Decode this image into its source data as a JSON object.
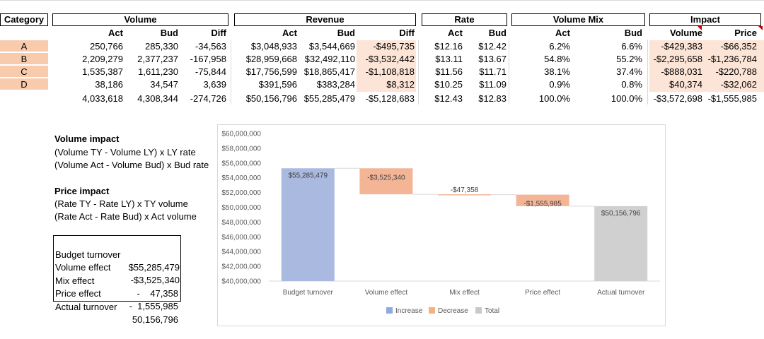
{
  "table": {
    "category_header": "Category",
    "groups": {
      "volume": "Volume",
      "revenue": "Revenue",
      "rate": "Rate",
      "volume_mix": "Volume Mix",
      "impact": "Impact"
    },
    "subheaders": {
      "volume": [
        "Act",
        "Bud",
        "Diff"
      ],
      "revenue": [
        "Act",
        "Bud",
        "Diff"
      ],
      "rate": [
        "Act",
        "Bud"
      ],
      "volume_mix": [
        "Act",
        "Bud"
      ],
      "impact": [
        "Volume",
        "Price"
      ]
    },
    "rows": [
      {
        "category": "A",
        "vol_act": "250,766",
        "vol_bud": "285,330",
        "vol_diff": "-34,563",
        "rev_act": "$3,048,933",
        "rev_bud": "$3,544,669",
        "rev_diff": "-$495,735",
        "rate_act": "$12.16",
        "rate_bud": "$12.42",
        "mix_act": "6.2%",
        "mix_bud": "6.6%",
        "imp_volume": "-$429,383",
        "imp_price": "-$66,352"
      },
      {
        "category": "B",
        "vol_act": "2,209,279",
        "vol_bud": "2,377,237",
        "vol_diff": "-167,958",
        "rev_act": "$28,959,668",
        "rev_bud": "$32,492,110",
        "rev_diff": "-$3,532,442",
        "rate_act": "$13.11",
        "rate_bud": "$13.67",
        "mix_act": "54.8%",
        "mix_bud": "55.2%",
        "imp_volume": "-$2,295,658",
        "imp_price": "-$1,236,784"
      },
      {
        "category": "C",
        "vol_act": "1,535,387",
        "vol_bud": "1,611,230",
        "vol_diff": "-75,844",
        "rev_act": "$17,756,599",
        "rev_bud": "$18,865,417",
        "rev_diff": "-$1,108,818",
        "rate_act": "$11.56",
        "rate_bud": "$11.71",
        "mix_act": "38.1%",
        "mix_bud": "37.4%",
        "imp_volume": "-$888,031",
        "imp_price": "-$220,788"
      },
      {
        "category": "D",
        "vol_act": "38,186",
        "vol_bud": "34,547",
        "vol_diff": "3,639",
        "rev_act": "$391,596",
        "rev_bud": "$383,284",
        "rev_diff": "$8,312",
        "rate_act": "$10.25",
        "rate_bud": "$11.09",
        "mix_act": "0.9%",
        "mix_bud": "0.8%",
        "imp_volume": "$40,374",
        "imp_price": "-$32,062"
      }
    ],
    "totals": {
      "vol_act": "4,033,618",
      "vol_bud": "4,308,344",
      "vol_diff": "-274,726",
      "rev_act": "$50,156,796",
      "rev_bud": "$55,285,479",
      "rev_diff": "-$5,128,683",
      "rate_act": "$12.43",
      "rate_bud": "$12.83",
      "mix_act": "100.0%",
      "mix_bud": "100.0%",
      "imp_volume": "-$3,572,698",
      "imp_price": "-$1,555,985"
    }
  },
  "notes": {
    "volume_title": "Volume impact",
    "volume_line1": "(Volume TY - Volume LY) x LY rate",
    "volume_line2": "(Volume Act - Volume Bud) x Bud rate",
    "price_title": "Price impact",
    "price_line1": "(Rate TY - Rate LY) x TY volume",
    "price_line2": "(Rate Act - Rate Bud) x Act volume"
  },
  "summary": [
    {
      "label": "Budget turnover",
      "value": "$55,285,479"
    },
    {
      "label": "Volume effect",
      "value": "-$3,525,340"
    },
    {
      "label": "Mix effect",
      "value": "-    47,358"
    },
    {
      "label": "Price effect",
      "value": "-  1,555,985"
    },
    {
      "label": "Actual turnover",
      "value": "50,156,796"
    }
  ],
  "chart_data": {
    "type": "bar",
    "subtype": "waterfall",
    "categories": [
      "Budget turnover",
      "Volume effect",
      "Mix effect",
      "Price effect",
      "Actual turnover"
    ],
    "values": [
      55285479,
      -3525340,
      -47358,
      -1555985,
      50156796
    ],
    "kinds": [
      "total",
      "decrease",
      "decrease",
      "decrease",
      "total"
    ],
    "data_labels": [
      "$55,285,479",
      "-$3,525,340",
      "-$47,358",
      "-$1,555,985",
      "$50,156,796"
    ],
    "yticks": [
      40000000,
      42000000,
      44000000,
      46000000,
      48000000,
      50000000,
      52000000,
      54000000,
      56000000,
      58000000,
      60000000
    ],
    "ytick_labels": [
      "$40,000,000",
      "$42,000,000",
      "$44,000,000",
      "$46,000,000",
      "$48,000,000",
      "$50,000,000",
      "$52,000,000",
      "$54,000,000",
      "$56,000,000",
      "$58,000,000",
      "$60,000,000"
    ],
    "ylim": [
      40000000,
      60000000
    ],
    "grid": false,
    "legend": [
      "Increase",
      "Decrease",
      "Total"
    ],
    "legend_position": "bottom",
    "colors": {
      "first_total": "#a9b9e0",
      "decrease": "#f4b596",
      "total": "#d0d0d0",
      "connector": "#d9d9d9",
      "axis": "#d9d9d9"
    },
    "legend_colors": [
      "#8faadc",
      "#f4b183",
      "#c9c9c9"
    ]
  }
}
